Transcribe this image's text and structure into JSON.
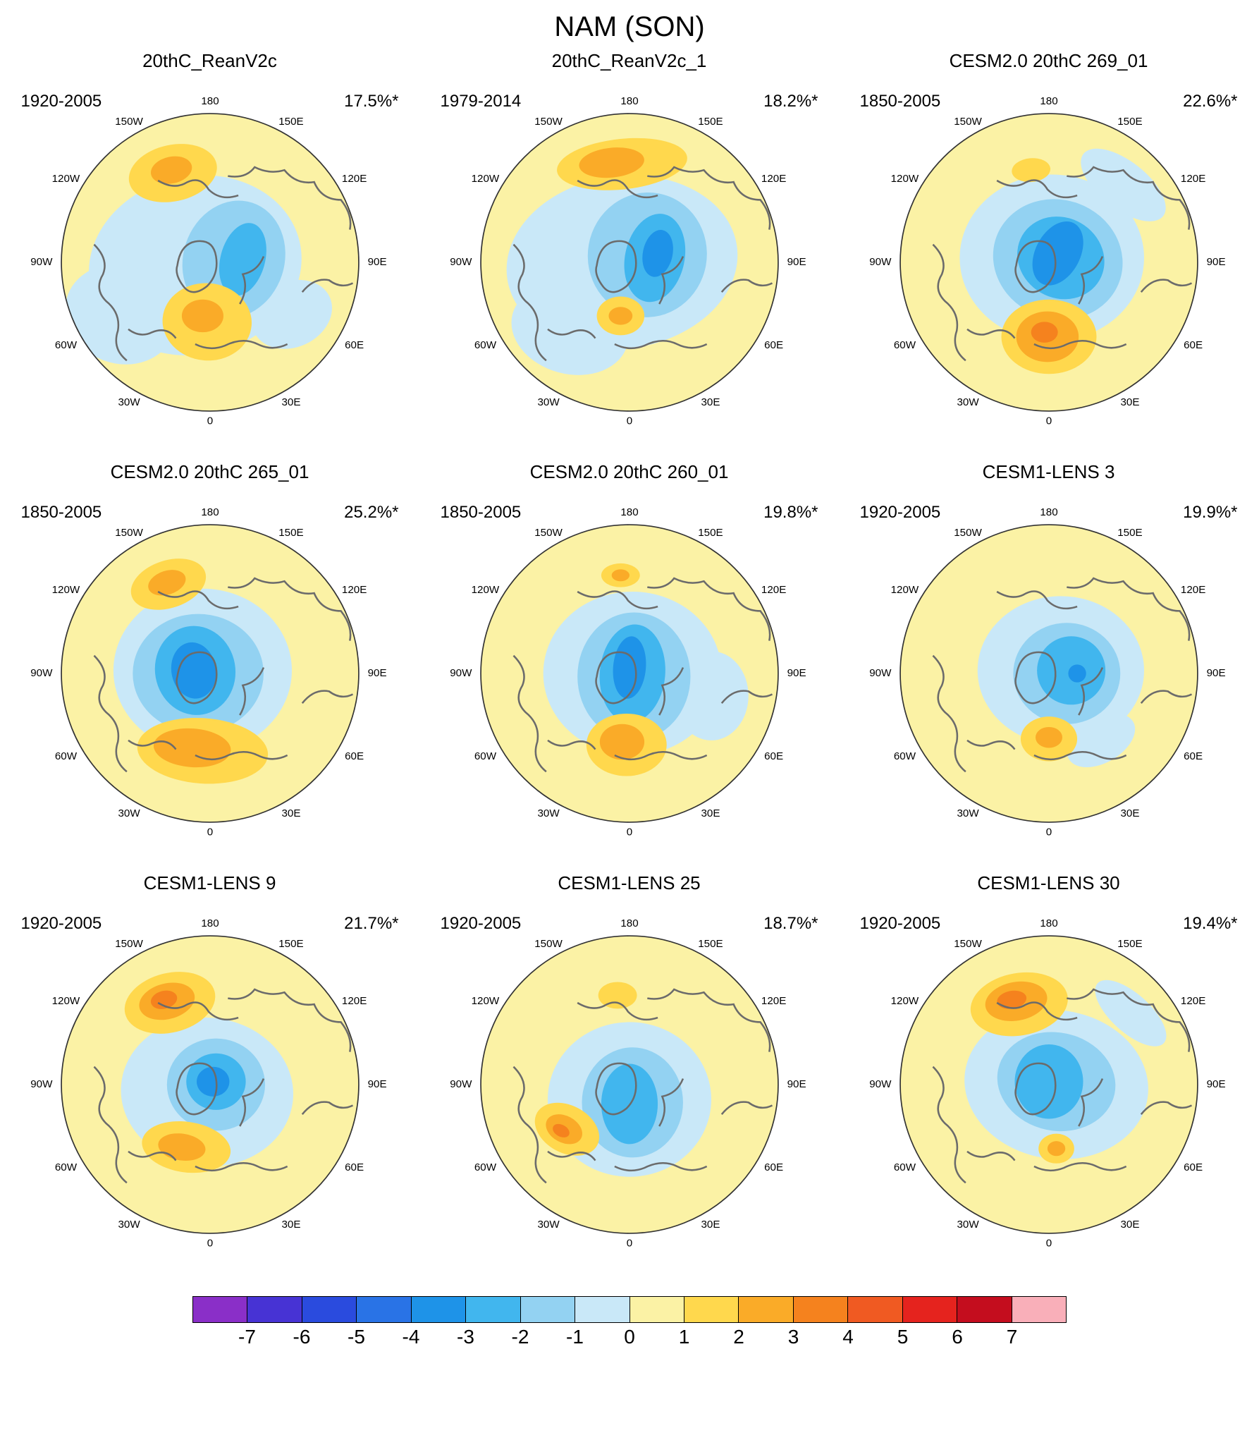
{
  "page_title": "NAM (SON)",
  "panels": [
    {
      "title": "20thC_ReanV2c",
      "period": "1920-2005",
      "variance": "17.5%*",
      "features": [
        [
          -1,
          -0.1,
          0.02,
          0.72,
          0.6,
          -12
        ],
        [
          -1,
          -0.6,
          0.35,
          0.38,
          0.33,
          20
        ],
        [
          -1,
          0.55,
          0.35,
          0.28,
          0.22,
          -25
        ],
        [
          -2,
          0.16,
          -0.02,
          0.34,
          0.4,
          18
        ],
        [
          -3,
          0.22,
          -0.02,
          0.15,
          0.25,
          15
        ],
        [
          1,
          -0.25,
          -0.6,
          0.3,
          0.19,
          -12
        ],
        [
          2,
          -0.26,
          -0.62,
          0.14,
          0.09,
          -12
        ],
        [
          1,
          -0.02,
          0.4,
          0.3,
          0.26,
          5
        ],
        [
          2,
          -0.05,
          0.36,
          0.14,
          0.11,
          0
        ]
      ]
    },
    {
      "title": "20thC_ReanV2c_1",
      "period": "1979-2014",
      "variance": "18.2%*",
      "features": [
        [
          -1,
          -0.05,
          0.0,
          0.78,
          0.58,
          -8
        ],
        [
          -1,
          -0.4,
          0.45,
          0.4,
          0.3,
          15
        ],
        [
          -2,
          0.12,
          -0.05,
          0.4,
          0.42,
          10
        ],
        [
          -3,
          0.17,
          -0.03,
          0.2,
          0.3,
          12
        ],
        [
          -4,
          0.19,
          -0.06,
          0.1,
          0.16,
          12
        ],
        [
          1,
          -0.05,
          -0.66,
          0.44,
          0.17,
          -6
        ],
        [
          2,
          -0.12,
          -0.67,
          0.22,
          0.1,
          -6
        ],
        [
          1,
          -0.06,
          0.36,
          0.16,
          0.13,
          0
        ],
        [
          2,
          -0.06,
          0.36,
          0.08,
          0.06,
          0
        ]
      ]
    },
    {
      "title": "CESM2.0 20thC 269_01",
      "period": "1850-2005",
      "variance": "22.6%*",
      "features": [
        [
          -1,
          0.02,
          -0.03,
          0.62,
          0.56,
          0
        ],
        [
          -1,
          0.5,
          -0.52,
          0.34,
          0.16,
          38
        ],
        [
          -2,
          0.06,
          -0.02,
          0.44,
          0.4,
          20
        ],
        [
          -3,
          0.08,
          -0.03,
          0.3,
          0.27,
          30
        ],
        [
          -4,
          0.06,
          -0.06,
          0.15,
          0.23,
          28
        ],
        [
          1,
          0.0,
          0.5,
          0.32,
          0.25,
          0
        ],
        [
          2,
          -0.01,
          0.5,
          0.21,
          0.17,
          0
        ],
        [
          3,
          -0.03,
          0.47,
          0.09,
          0.07,
          0
        ],
        [
          1,
          -0.12,
          -0.62,
          0.13,
          0.08,
          -5
        ]
      ]
    },
    {
      "title": "CESM2.0 20thC 265_01",
      "period": "1850-2005",
      "variance": "25.2%*",
      "features": [
        [
          -1,
          -0.05,
          -0.02,
          0.6,
          0.55,
          0
        ],
        [
          -2,
          -0.08,
          0.0,
          0.44,
          0.4,
          0
        ],
        [
          -3,
          -0.1,
          -0.02,
          0.27,
          0.3,
          -10
        ],
        [
          -4,
          -0.11,
          -0.02,
          0.15,
          0.19,
          -10
        ],
        [
          1,
          -0.05,
          0.52,
          0.44,
          0.22,
          4
        ],
        [
          2,
          -0.12,
          0.5,
          0.26,
          0.13,
          4
        ],
        [
          1,
          -0.28,
          -0.6,
          0.26,
          0.16,
          -18
        ],
        [
          2,
          -0.29,
          -0.61,
          0.13,
          0.08,
          -18
        ]
      ]
    },
    {
      "title": "CESM2.0 20thC 260_01",
      "period": "1850-2005",
      "variance": "19.8%*",
      "features": [
        [
          -1,
          0.02,
          0.0,
          0.6,
          0.55,
          0
        ],
        [
          -1,
          0.55,
          0.15,
          0.25,
          0.3,
          0
        ],
        [
          -2,
          0.03,
          0.02,
          0.38,
          0.43,
          0
        ],
        [
          -3,
          0.02,
          0.0,
          0.22,
          0.33,
          5
        ],
        [
          -4,
          0.0,
          -0.04,
          0.11,
          0.21,
          5
        ],
        [
          1,
          -0.02,
          0.48,
          0.27,
          0.21,
          0
        ],
        [
          2,
          -0.05,
          0.46,
          0.15,
          0.12,
          0
        ],
        [
          1,
          -0.06,
          -0.66,
          0.13,
          0.08,
          0
        ],
        [
          2,
          -0.06,
          -0.66,
          0.06,
          0.04,
          0
        ]
      ]
    },
    {
      "title": "CESM1-LENS 3",
      "period": "1920-2005",
      "variance": "19.9%*",
      "features": [
        [
          -1,
          0.08,
          -0.02,
          0.56,
          0.5,
          0
        ],
        [
          -1,
          0.35,
          0.45,
          0.25,
          0.15,
          -30
        ],
        [
          -2,
          0.12,
          0.0,
          0.36,
          0.34,
          0
        ],
        [
          -3,
          0.15,
          -0.02,
          0.23,
          0.23,
          0
        ],
        [
          -4,
          0.19,
          0.0,
          0.06,
          0.06,
          0
        ],
        [
          1,
          0.0,
          0.44,
          0.19,
          0.15,
          0
        ],
        [
          2,
          0.0,
          0.43,
          0.09,
          0.07,
          0
        ]
      ]
    },
    {
      "title": "CESM1-LENS 9",
      "period": "1920-2005",
      "variance": "21.7%*",
      "features": [
        [
          -1,
          -0.02,
          0.05,
          0.58,
          0.5,
          5
        ],
        [
          -2,
          0.04,
          0.0,
          0.33,
          0.31,
          0
        ],
        [
          -3,
          0.04,
          -0.02,
          0.2,
          0.19,
          0
        ],
        [
          -4,
          0.02,
          -0.02,
          0.11,
          0.1,
          0
        ],
        [
          1,
          -0.27,
          -0.55,
          0.31,
          0.2,
          -14
        ],
        [
          2,
          -0.29,
          -0.56,
          0.19,
          0.12,
          -14
        ],
        [
          3,
          -0.31,
          -0.57,
          0.09,
          0.06,
          -14
        ],
        [
          1,
          -0.16,
          0.42,
          0.3,
          0.17,
          8
        ],
        [
          2,
          -0.19,
          0.42,
          0.16,
          0.09,
          8
        ]
      ]
    },
    {
      "title": "CESM1-LENS 25",
      "period": "1920-2005",
      "variance": "18.7%*",
      "features": [
        [
          -1,
          0.0,
          0.1,
          0.55,
          0.52,
          0
        ],
        [
          -2,
          0.02,
          0.12,
          0.34,
          0.37,
          0
        ],
        [
          -3,
          0.0,
          0.13,
          0.19,
          0.27,
          0
        ],
        [
          1,
          -0.42,
          0.3,
          0.23,
          0.16,
          28
        ],
        [
          2,
          -0.44,
          0.3,
          0.13,
          0.09,
          28
        ],
        [
          3,
          -0.46,
          0.31,
          0.06,
          0.04,
          28
        ],
        [
          1,
          -0.08,
          -0.6,
          0.13,
          0.09,
          0
        ]
      ]
    },
    {
      "title": "CESM1-LENS 30",
      "period": "1920-2005",
      "variance": "19.4%*",
      "features": [
        [
          -1,
          0.05,
          0.0,
          0.62,
          0.5,
          8
        ],
        [
          -1,
          0.55,
          -0.48,
          0.3,
          0.13,
          42
        ],
        [
          -2,
          0.05,
          -0.02,
          0.4,
          0.33,
          12
        ],
        [
          -3,
          0.0,
          -0.02,
          0.23,
          0.25,
          0
        ],
        [
          1,
          -0.2,
          -0.54,
          0.33,
          0.21,
          -10
        ],
        [
          2,
          -0.22,
          -0.56,
          0.21,
          0.13,
          -10
        ],
        [
          3,
          -0.25,
          -0.57,
          0.1,
          0.06,
          -10
        ],
        [
          1,
          0.05,
          0.43,
          0.12,
          0.1,
          0
        ],
        [
          2,
          0.05,
          0.43,
          0.06,
          0.05,
          0
        ]
      ]
    }
  ],
  "lon_labels": [
    {
      "text": "180",
      "angle": 0
    },
    {
      "text": "150E",
      "angle": 30
    },
    {
      "text": "120E",
      "angle": 60
    },
    {
      "text": "90E",
      "angle": 90
    },
    {
      "text": "60E",
      "angle": 120
    },
    {
      "text": "30E",
      "angle": 150
    },
    {
      "text": "0",
      "angle": 180
    },
    {
      "text": "30W",
      "angle": 210
    },
    {
      "text": "60W",
      "angle": 240
    },
    {
      "text": "90W",
      "angle": 270
    },
    {
      "text": "120W",
      "angle": 300
    },
    {
      "text": "150W",
      "angle": 330
    }
  ],
  "map_colors": {
    "0": "#FBF2A5",
    "-1": "#C9E8F8",
    "-2": "#93D2F2",
    "-3": "#41B6EE",
    "-4": "#1E93E8",
    "1": "#FFD84D",
    "2": "#FAAB28",
    "3": "#F5821E"
  },
  "colorbar": {
    "colors": [
      "#8A2FC8",
      "#4733D4",
      "#2A4BDE",
      "#2973E6",
      "#1E93E8",
      "#41B6EE",
      "#93D2F2",
      "#C9E8F8",
      "#FBF2A5",
      "#FFD84D",
      "#FAAB28",
      "#F5821E",
      "#F05A22",
      "#E5231E",
      "#C40D1E",
      "#F9AFB9"
    ],
    "ticks": [
      "-7",
      "-6",
      "-5",
      "-4",
      "-3",
      "-2",
      "-1",
      "0",
      "1",
      "2",
      "3",
      "4",
      "5",
      "6",
      "7"
    ]
  },
  "chart_data": {
    "type": "heatmap",
    "title": "NAM (SON)",
    "description": "3x3 grid of north polar stereographic maps showing the Northern Annular Mode (SON season) anomaly pattern for reanalyses and model ensemble members; blue = negative anomalies over the Arctic, yellow/orange = positive anomalies in midlatitudes; shared horizontal colorbar at bottom.",
    "projection": "north polar stereographic",
    "longitude_ring_labels": [
      "180",
      "150E",
      "120E",
      "90E",
      "60E",
      "30E",
      "0",
      "30W",
      "60W",
      "90W",
      "120W",
      "150W"
    ],
    "panels": [
      {
        "name": "20thC_ReanV2c",
        "period": "1920-2005",
        "variance_explained_pct": 17.5,
        "starred": true
      },
      {
        "name": "20thC_ReanV2c_1",
        "period": "1979-2014",
        "variance_explained_pct": 18.2,
        "starred": true
      },
      {
        "name": "CESM2.0 20thC 269_01",
        "period": "1850-2005",
        "variance_explained_pct": 22.6,
        "starred": true
      },
      {
        "name": "CESM2.0 20thC 265_01",
        "period": "1850-2005",
        "variance_explained_pct": 25.2,
        "starred": true
      },
      {
        "name": "CESM2.0 20thC 260_01",
        "period": "1850-2005",
        "variance_explained_pct": 19.8,
        "starred": true
      },
      {
        "name": "CESM1-LENS 3",
        "period": "1920-2005",
        "variance_explained_pct": 19.9,
        "starred": true
      },
      {
        "name": "CESM1-LENS 9",
        "period": "1920-2005",
        "variance_explained_pct": 21.7,
        "starred": true
      },
      {
        "name": "CESM1-LENS 25",
        "period": "1920-2005",
        "variance_explained_pct": 18.7,
        "starred": true
      },
      {
        "name": "CESM1-LENS 30",
        "period": "1920-2005",
        "variance_explained_pct": 19.4,
        "starred": true
      }
    ],
    "colorbar": {
      "levels": [
        -7,
        -6,
        -5,
        -4,
        -3,
        -2,
        -1,
        0,
        1,
        2,
        3,
        4,
        5,
        6,
        7
      ],
      "orientation": "horizontal",
      "position": "bottom"
    }
  }
}
